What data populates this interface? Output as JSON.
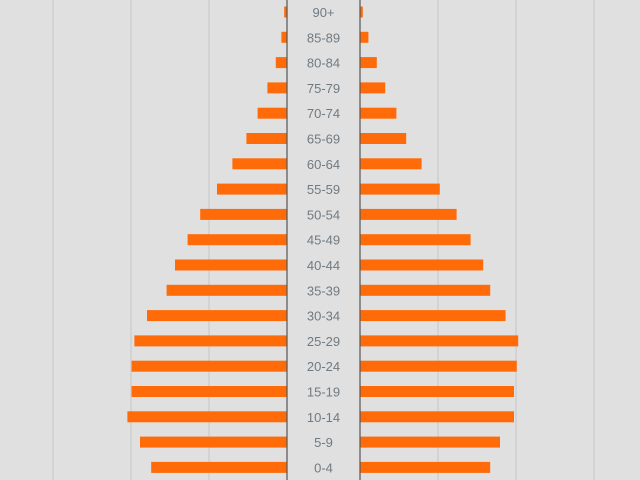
{
  "chart_data": {
    "type": "bar",
    "title": "",
    "xlabel": "",
    "ylabel": "",
    "grid": true,
    "categories": [
      "90+",
      "85-89",
      "80-84",
      "75-79",
      "70-74",
      "65-69",
      "60-64",
      "55-59",
      "50-54",
      "45-49",
      "40-44",
      "35-39",
      "30-34",
      "25-29",
      "20-24",
      "15-19",
      "10-14",
      "5-9",
      "0-4"
    ],
    "series": [
      {
        "side": "left",
        "values": [
          0.2,
          0.4,
          0.8,
          1.4,
          2.1,
          2.9,
          3.9,
          5.0,
          6.2,
          7.1,
          8.0,
          8.6,
          10.0,
          10.9,
          11.1,
          11.1,
          11.4,
          10.5,
          9.7
        ]
      },
      {
        "side": "right",
        "values": [
          0.2,
          0.6,
          1.2,
          1.8,
          2.6,
          3.3,
          4.4,
          5.7,
          6.9,
          7.9,
          8.8,
          9.3,
          10.4,
          11.3,
          11.2,
          11.0,
          11.0,
          10.0,
          9.3
        ]
      }
    ],
    "color": "#ff6b08",
    "grid_color": "#c6c6c6",
    "axis_color": "#555555"
  }
}
